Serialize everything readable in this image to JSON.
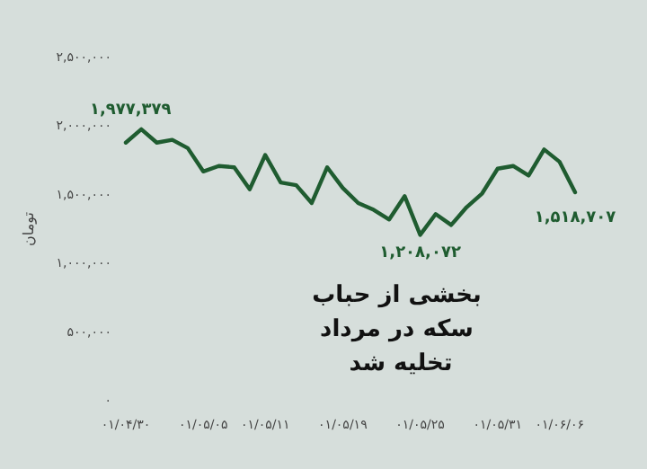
{
  "chart_data": {
    "type": "line",
    "title": "بخشی از حباب سکه در مرداد تخلیه شد",
    "ylabel": "تومان",
    "categories": [
      "۰۱/۰۴/۳۰",
      null,
      null,
      null,
      null,
      "۰۱/۰۵/۰۵",
      null,
      null,
      null,
      "۰۱/۰۵/۱۱",
      null,
      null,
      null,
      null,
      "۰۱/۰۵/۱۹",
      null,
      null,
      null,
      null,
      "۰۱/۰۵/۲۵",
      null,
      null,
      null,
      null,
      "۰۱/۰۵/۳۱",
      null,
      null,
      null,
      "۰۱/۰۶/۰۶",
      null
    ],
    "series": [
      {
        "color": "#1f5c30",
        "values": [
          1880000,
          1977379,
          1880000,
          1900000,
          1840000,
          1670000,
          1710000,
          1700000,
          1540000,
          1790000,
          1590000,
          1570000,
          1440000,
          1700000,
          1550000,
          1440000,
          1390000,
          1320000,
          1490000,
          1208072,
          1360000,
          1280000,
          1410000,
          1510000,
          1690000,
          1710000,
          1640000,
          1830000,
          1740000,
          1518707
        ],
        "value_labels": [
          null,
          "۱,۹۷۷,۳۷۹",
          null,
          null,
          null,
          null,
          null,
          null,
          null,
          null,
          null,
          null,
          null,
          null,
          null,
          null,
          null,
          null,
          null,
          "۱,۲۰۸,۰۷۲",
          null,
          null,
          null,
          null,
          null,
          null,
          null,
          null,
          null,
          "۱,۵۱۸,۷۰۷"
        ]
      }
    ],
    "ylim": [
      0,
      2500000
    ],
    "yticks": [
      {
        "value": 0,
        "label": "۰"
      },
      {
        "value": 500000,
        "label": "۵۰۰,۰۰۰"
      },
      {
        "value": 1000000,
        "label": "۱,۰۰۰,۰۰۰"
      },
      {
        "value": 1500000,
        "label": "۱,۵۰۰,۰۰۰"
      },
      {
        "value": 2000000,
        "label": "۲,۰۰۰,۰۰۰"
      },
      {
        "value": 2500000,
        "label": "۲,۵۰۰,۰۰۰"
      }
    ],
    "marker": "none"
  }
}
